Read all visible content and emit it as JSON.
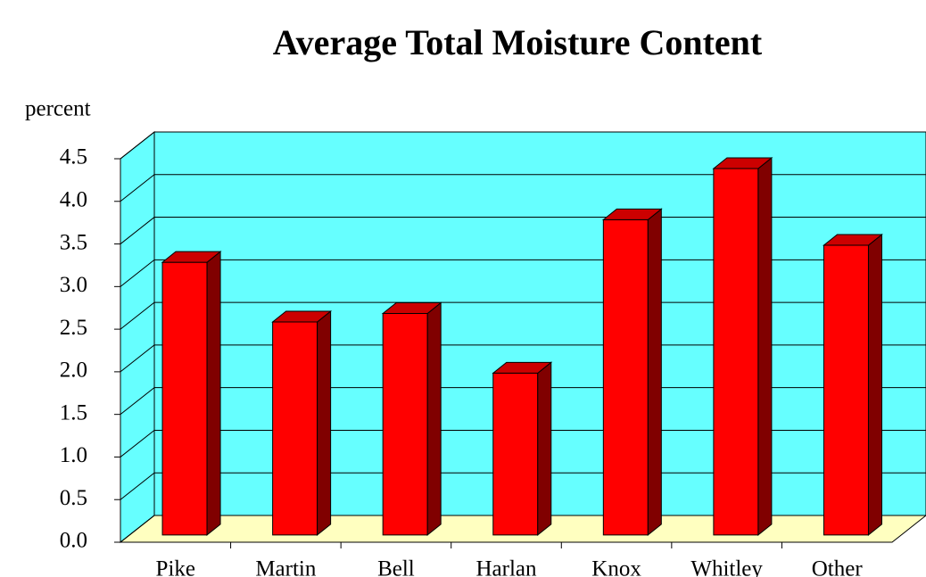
{
  "chart_data": {
    "type": "bar3d",
    "title": "Average Total Moisture Content",
    "y_label": "percent",
    "categories": [
      "Pike",
      "Martin",
      "Bell",
      "Harlan",
      "Knox",
      "Whitley",
      "Other"
    ],
    "values": [
      3.2,
      2.5,
      2.6,
      1.9,
      3.7,
      4.3,
      3.4
    ],
    "color": "#ff0000",
    "ylim": [
      0,
      4.5
    ],
    "yticks": [
      {
        "value": 0,
        "label": "0.0"
      },
      {
        "value": 0.5,
        "label": "0.5"
      },
      {
        "value": 1,
        "label": "1.0"
      },
      {
        "value": 1.5,
        "label": "1.5"
      },
      {
        "value": 2,
        "label": "2.0"
      },
      {
        "value": 2.5,
        "label": "2.5"
      },
      {
        "value": 3,
        "label": "3.0"
      },
      {
        "value": 3.5,
        "label": "3.5"
      },
      {
        "value": 4,
        "label": "4.0"
      },
      {
        "value": 4.5,
        "label": "4.5"
      }
    ],
    "grid": true
  }
}
